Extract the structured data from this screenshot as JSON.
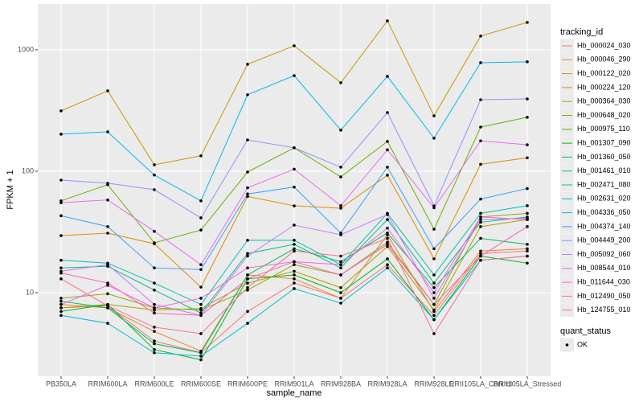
{
  "chart_data": {
    "type": "line",
    "log_y": true,
    "grid": true,
    "legend_position": "right",
    "x_label": "sample_name",
    "y_label": "FPKM + 1",
    "categories": [
      "PB350LA",
      "RRIM600LA",
      "RRIM600LE",
      "RRIM600SE",
      "RRIM600PE",
      "RRIM901LA",
      "RRIM928BA",
      "RRIM928LA",
      "RRIM928LE",
      "RRII105LA_Control",
      "RRII105LA_Stressed"
    ],
    "ylim": [
      2.05,
      2380
    ],
    "yticks": [
      10,
      100,
      1000
    ],
    "legend_title": "tracking_id",
    "point_legend": {
      "title": "quant_status",
      "labels": [
        "OK"
      ],
      "color": "#000000"
    },
    "series": [
      {
        "name": "Hb_000024_030",
        "color": "#F8766D",
        "values": [
          7.5,
          7.8,
          4,
          3.2,
          7,
          12,
          9,
          17,
          6.5,
          21,
          22
        ]
      },
      {
        "name": "Hb_000046_290",
        "color": "#EC8239",
        "values": [
          8,
          7.5,
          4.8,
          3.3,
          14,
          13,
          9,
          30,
          7,
          22,
          23
        ]
      },
      {
        "name": "Hb_000122_020",
        "color": "#DB8E00",
        "values": [
          29.5,
          30.9,
          25.3,
          11.1,
          62,
          51.9,
          49.6,
          92.8,
          19,
          114,
          129
        ]
      },
      {
        "name": "Hb_000224_120",
        "color": "#C79800",
        "values": [
          314,
          459,
          113,
          134,
          760,
          1079,
          535,
          1730,
          286,
          1297,
          1679
        ]
      },
      {
        "name": "Hb_000364_030",
        "color": "#AEA200",
        "values": [
          7.5,
          8,
          7.2,
          7.4,
          12,
          15,
          11,
          24,
          7.2,
          35,
          40
        ]
      },
      {
        "name": "Hb_000648_020",
        "color": "#8FAA00",
        "values": [
          9,
          9.8,
          7.5,
          7.2,
          10.5,
          17,
          14,
          26,
          8,
          42,
          45
        ]
      },
      {
        "name": "Hb_000975_110",
        "color": "#64B200",
        "values": [
          57,
          77.5,
          25.7,
          32.8,
          98.5,
          156,
          89.8,
          176,
          33.3,
          231,
          278
        ]
      },
      {
        "name": "Hb_001307_090",
        "color": "#00B81B",
        "values": [
          7,
          8,
          3.4,
          2.8,
          13,
          14,
          10,
          19,
          6,
          20,
          17.5
        ]
      },
      {
        "name": "Hb_001360_050",
        "color": "#00BD5C",
        "values": [
          8.5,
          7.5,
          3.8,
          3.2,
          14,
          23,
          18,
          31,
          11,
          28,
          25
        ]
      },
      {
        "name": "Hb_001461_010",
        "color": "#00C08B",
        "values": [
          16,
          16.5,
          10.5,
          6.8,
          21,
          25,
          16,
          40,
          12,
          38,
          42
        ]
      },
      {
        "name": "Hb_002471_080",
        "color": "#00C1B2",
        "values": [
          18.5,
          17.5,
          12,
          8,
          27,
          27,
          17,
          45,
          14,
          45,
          52
        ]
      },
      {
        "name": "Hb_002631_020",
        "color": "#00BFD4",
        "values": [
          6.5,
          5.6,
          3.2,
          3,
          5.6,
          10.8,
          8.2,
          16,
          6,
          18.5,
          20
        ]
      },
      {
        "name": "Hb_004336_050",
        "color": "#00BAEE",
        "values": [
          202,
          211,
          93,
          57,
          426,
          613,
          218,
          604,
          187,
          783,
          796
        ]
      },
      {
        "name": "Hb_004374_140",
        "color": "#35A2FF",
        "values": [
          43,
          35,
          16,
          15.5,
          65,
          74,
          31,
          108,
          23,
          59,
          72
        ]
      },
      {
        "name": "Hb_004449_200",
        "color": "#9590FF",
        "values": [
          84.5,
          79.6,
          70.5,
          41.3,
          181,
          156,
          108,
          304,
          51.9,
          388,
          394
        ]
      },
      {
        "name": "Hb_005092_060",
        "color": "#C77CFF",
        "values": [
          15,
          17,
          8,
          6.5,
          20,
          36,
          30,
          44,
          9,
          40,
          41
        ]
      },
      {
        "name": "Hb_008544_010",
        "color": "#E76BF3",
        "values": [
          55,
          58,
          32,
          17,
          73,
          104,
          52,
          150,
          50,
          178,
          165
        ]
      },
      {
        "name": "Hb_011644_030",
        "color": "#FA62DB",
        "values": [
          8,
          11.5,
          7.5,
          9,
          16,
          18,
          17,
          34,
          10,
          42,
          40
        ]
      },
      {
        "name": "Hb_012490_050",
        "color": "#FF62BC",
        "values": [
          14.5,
          12,
          6.8,
          6.5,
          13,
          18,
          14,
          25,
          8,
          20,
          35
        ]
      },
      {
        "name": "Hb_124755_010",
        "color": "#FF6C91",
        "values": [
          13,
          7.8,
          5.2,
          4.6,
          11,
          22,
          20,
          28,
          4.6,
          18.5,
          20
        ]
      }
    ]
  }
}
